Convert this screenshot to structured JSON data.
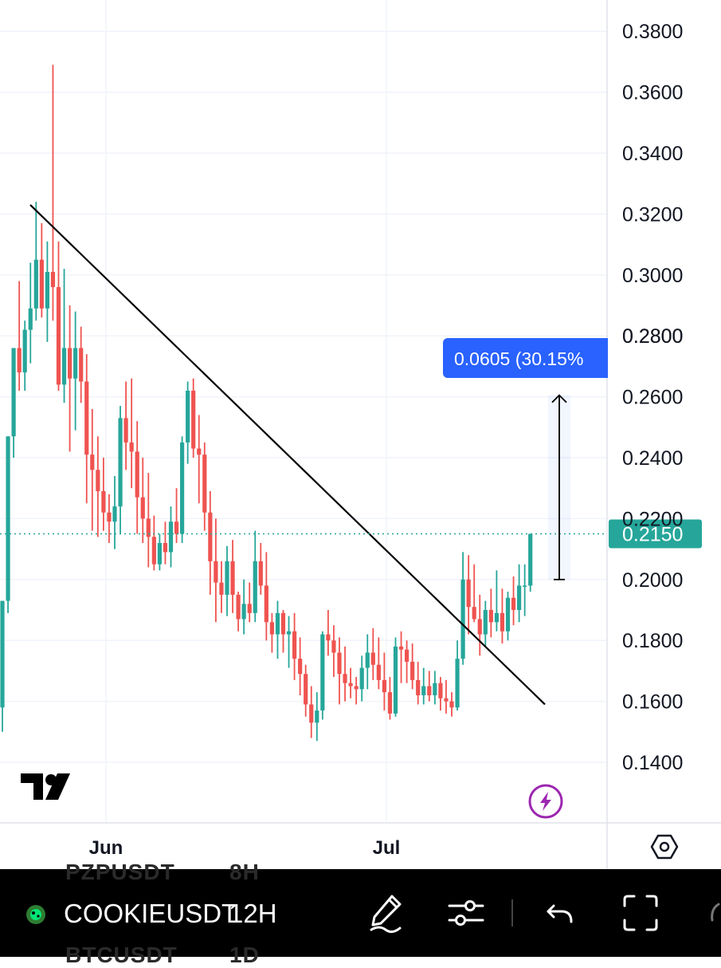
{
  "chart_data": {
    "type": "candlestick",
    "symbol": "COOKIEUSDT",
    "interval": "12H",
    "y_ticks": [
      "0.3800",
      "0.3600",
      "0.3400",
      "0.3200",
      "0.3000",
      "0.2800",
      "0.2600",
      "0.2400",
      "0.2200",
      "0.2000",
      "0.1800",
      "0.1600",
      "0.1400"
    ],
    "ylim": [
      0.125,
      0.388
    ],
    "x_tick_labels": [
      "Jun",
      "Jul"
    ],
    "last_price": 0.215,
    "last_price_label": "0.2150",
    "measure": {
      "from": 0.2,
      "to": 0.2605,
      "label": "0.0605 (30.15%"
    },
    "trendline": {
      "start_price": 0.323,
      "end_price": 0.159
    },
    "colors": {
      "up": "#26a69a",
      "down": "#ef5350",
      "trendline": "#000000",
      "measure": "#2962ff",
      "price_line": "#26a69a"
    },
    "candles": [
      [
        0.158,
        0.193,
        0.15,
        0.193
      ],
      [
        0.193,
        0.247,
        0.189,
        0.247
      ],
      [
        0.247,
        0.276,
        0.24,
        0.276
      ],
      [
        0.276,
        0.298,
        0.262,
        0.268
      ],
      [
        0.268,
        0.285,
        0.262,
        0.282
      ],
      [
        0.282,
        0.304,
        0.271,
        0.289
      ],
      [
        0.289,
        0.324,
        0.285,
        0.305
      ],
      [
        0.305,
        0.317,
        0.286,
        0.289
      ],
      [
        0.289,
        0.311,
        0.278,
        0.301
      ],
      [
        0.301,
        0.369,
        0.285,
        0.296
      ],
      [
        0.296,
        0.311,
        0.262,
        0.264
      ],
      [
        0.264,
        0.302,
        0.258,
        0.276
      ],
      [
        0.276,
        0.29,
        0.242,
        0.266
      ],
      [
        0.266,
        0.288,
        0.249,
        0.276
      ],
      [
        0.276,
        0.283,
        0.258,
        0.265
      ],
      [
        0.265,
        0.274,
        0.225,
        0.241
      ],
      [
        0.241,
        0.256,
        0.216,
        0.236
      ],
      [
        0.236,
        0.247,
        0.214,
        0.229
      ],
      [
        0.229,
        0.24,
        0.216,
        0.222
      ],
      [
        0.222,
        0.228,
        0.212,
        0.219
      ],
      [
        0.219,
        0.234,
        0.21,
        0.224
      ],
      [
        0.224,
        0.257,
        0.215,
        0.253
      ],
      [
        0.253,
        0.265,
        0.236,
        0.245
      ],
      [
        0.245,
        0.266,
        0.23,
        0.242
      ],
      [
        0.242,
        0.252,
        0.215,
        0.227
      ],
      [
        0.227,
        0.24,
        0.212,
        0.22
      ],
      [
        0.22,
        0.235,
        0.204,
        0.214
      ],
      [
        0.214,
        0.221,
        0.203,
        0.205
      ],
      [
        0.205,
        0.215,
        0.203,
        0.212
      ],
      [
        0.212,
        0.219,
        0.205,
        0.209
      ],
      [
        0.209,
        0.224,
        0.204,
        0.219
      ],
      [
        0.219,
        0.23,
        0.212,
        0.215
      ],
      [
        0.215,
        0.247,
        0.212,
        0.245
      ],
      [
        0.245,
        0.265,
        0.238,
        0.262
      ],
      [
        0.262,
        0.266,
        0.24,
        0.243
      ],
      [
        0.243,
        0.254,
        0.225,
        0.241
      ],
      [
        0.241,
        0.245,
        0.216,
        0.222
      ],
      [
        0.222,
        0.229,
        0.195,
        0.206
      ],
      [
        0.206,
        0.22,
        0.186,
        0.199
      ],
      [
        0.199,
        0.206,
        0.189,
        0.195
      ],
      [
        0.195,
        0.211,
        0.188,
        0.206
      ],
      [
        0.206,
        0.213,
        0.189,
        0.195
      ],
      [
        0.195,
        0.196,
        0.183,
        0.187
      ],
      [
        0.187,
        0.2,
        0.182,
        0.192
      ],
      [
        0.192,
        0.199,
        0.186,
        0.189
      ],
      [
        0.189,
        0.216,
        0.186,
        0.206
      ],
      [
        0.206,
        0.212,
        0.195,
        0.198
      ],
      [
        0.198,
        0.209,
        0.18,
        0.186
      ],
      [
        0.186,
        0.189,
        0.176,
        0.182
      ],
      [
        0.182,
        0.193,
        0.174,
        0.189
      ],
      [
        0.189,
        0.19,
        0.176,
        0.182
      ],
      [
        0.182,
        0.188,
        0.171,
        0.183
      ],
      [
        0.183,
        0.189,
        0.167,
        0.174
      ],
      [
        0.174,
        0.181,
        0.162,
        0.169
      ],
      [
        0.169,
        0.172,
        0.155,
        0.159
      ],
      [
        0.159,
        0.165,
        0.148,
        0.153
      ],
      [
        0.153,
        0.163,
        0.147,
        0.157
      ],
      [
        0.157,
        0.183,
        0.154,
        0.182
      ],
      [
        0.182,
        0.19,
        0.175,
        0.18
      ],
      [
        0.18,
        0.185,
        0.168,
        0.176
      ],
      [
        0.176,
        0.181,
        0.159,
        0.169
      ],
      [
        0.169,
        0.178,
        0.16,
        0.166
      ],
      [
        0.166,
        0.171,
        0.161,
        0.165
      ],
      [
        0.165,
        0.168,
        0.159,
        0.164
      ],
      [
        0.164,
        0.175,
        0.16,
        0.171
      ],
      [
        0.171,
        0.182,
        0.164,
        0.176
      ],
      [
        0.176,
        0.184,
        0.167,
        0.172
      ],
      [
        0.172,
        0.181,
        0.164,
        0.167
      ],
      [
        0.167,
        0.176,
        0.157,
        0.163
      ],
      [
        0.163,
        0.168,
        0.154,
        0.156
      ],
      [
        0.156,
        0.181,
        0.155,
        0.178
      ],
      [
        0.178,
        0.183,
        0.166,
        0.177
      ],
      [
        0.177,
        0.18,
        0.166,
        0.173
      ],
      [
        0.173,
        0.179,
        0.164,
        0.167
      ],
      [
        0.167,
        0.173,
        0.159,
        0.162
      ],
      [
        0.162,
        0.171,
        0.159,
        0.165
      ],
      [
        0.165,
        0.17,
        0.16,
        0.162
      ],
      [
        0.162,
        0.17,
        0.159,
        0.166
      ],
      [
        0.166,
        0.168,
        0.157,
        0.161
      ],
      [
        0.161,
        0.167,
        0.156,
        0.16
      ],
      [
        0.16,
        0.163,
        0.155,
        0.158
      ],
      [
        0.158,
        0.18,
        0.157,
        0.174
      ],
      [
        0.174,
        0.209,
        0.172,
        0.2
      ],
      [
        0.2,
        0.208,
        0.182,
        0.191
      ],
      [
        0.191,
        0.205,
        0.186,
        0.187
      ],
      [
        0.187,
        0.195,
        0.175,
        0.182
      ],
      [
        0.182,
        0.193,
        0.178,
        0.19
      ],
      [
        0.19,
        0.197,
        0.181,
        0.186
      ],
      [
        0.186,
        0.203,
        0.183,
        0.189
      ],
      [
        0.189,
        0.197,
        0.179,
        0.183
      ],
      [
        0.183,
        0.196,
        0.18,
        0.194
      ],
      [
        0.194,
        0.201,
        0.185,
        0.19
      ],
      [
        0.19,
        0.205,
        0.186,
        0.198
      ],
      [
        0.198,
        0.205,
        0.188,
        0.198
      ],
      [
        0.198,
        0.215,
        0.196,
        0.215
      ]
    ]
  },
  "toolbar": {
    "symbol": "COOKIEUSDT",
    "interval": "12H",
    "ghost_above_symbol": "PZPUSDT",
    "ghost_above_interval": "8H",
    "ghost_below_symbol": "BTCUSDT",
    "ghost_below_interval": "1D",
    "icons": [
      "cookie-icon",
      "pencil-icon",
      "settings-sliders-icon",
      "undo-icon",
      "fullscreen-icon"
    ]
  }
}
